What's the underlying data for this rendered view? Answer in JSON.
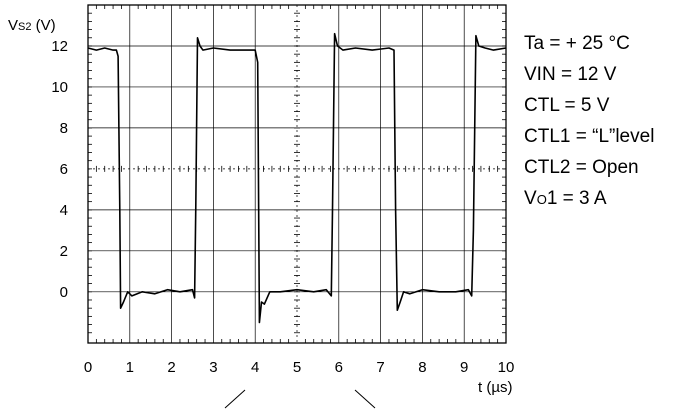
{
  "chart_data": {
    "type": "line",
    "ylabel_main": "V",
    "ylabel_sub": "S2",
    "ylabel_unit": " (V)",
    "xlabel": "t (µs)",
    "xlim": [
      0,
      10
    ],
    "ylim": [
      -2.5,
      14
    ],
    "grid": true,
    "x_ticks": [
      "0",
      "1",
      "2",
      "3",
      "4",
      "5",
      "6",
      "7",
      "8",
      "9",
      "10"
    ],
    "y_ticks": [
      "12",
      "10",
      "8",
      "6",
      "4",
      "2",
      "0"
    ],
    "y_tick_values": [
      12,
      10,
      8,
      6,
      4,
      2,
      0
    ],
    "series": [
      {
        "color": "#000000",
        "x": [
          0.0,
          0.2,
          0.4,
          0.6,
          0.68,
          0.72,
          0.76,
          0.78,
          0.85,
          0.95,
          1.05,
          1.3,
          1.6,
          1.9,
          2.2,
          2.5,
          2.55,
          2.58,
          2.62,
          2.68,
          2.75,
          3.0,
          3.4,
          3.8,
          4.0,
          4.06,
          4.1,
          4.15,
          4.22,
          4.35,
          4.6,
          5.0,
          5.4,
          5.7,
          5.82,
          5.85,
          5.9,
          5.97,
          6.1,
          6.4,
          6.8,
          7.2,
          7.32,
          7.36,
          7.4,
          7.47,
          7.55,
          7.7,
          8.0,
          8.4,
          8.8,
          9.1,
          9.18,
          9.22,
          9.28,
          9.35,
          9.5,
          9.7,
          10.0
        ],
        "y": [
          11.9,
          11.8,
          11.9,
          11.8,
          11.8,
          11.5,
          4.0,
          -0.8,
          -0.5,
          0.0,
          -0.2,
          0.0,
          -0.1,
          0.1,
          0.0,
          0.1,
          -0.3,
          4.2,
          12.4,
          12.0,
          11.8,
          11.9,
          11.8,
          11.8,
          11.8,
          11.2,
          -1.5,
          -0.5,
          -0.6,
          0.0,
          0.0,
          0.1,
          0.0,
          0.1,
          -0.2,
          4.0,
          12.6,
          12.0,
          11.8,
          11.9,
          11.8,
          11.9,
          11.8,
          4.0,
          -0.9,
          -0.5,
          0.0,
          -0.1,
          0.1,
          0.0,
          0.0,
          0.1,
          -0.2,
          3.0,
          12.5,
          12.0,
          11.9,
          11.8,
          11.9
        ]
      }
    ],
    "annotations": [
      "Ta = + 25 °C",
      "VIN = 12 V",
      "CTL = 5 V",
      "CTL1 = “L”level",
      "CTL2 = Open"
    ],
    "annotation_vo": {
      "main": "V",
      "sub": "O",
      "rest": "1 = 3 A"
    }
  }
}
